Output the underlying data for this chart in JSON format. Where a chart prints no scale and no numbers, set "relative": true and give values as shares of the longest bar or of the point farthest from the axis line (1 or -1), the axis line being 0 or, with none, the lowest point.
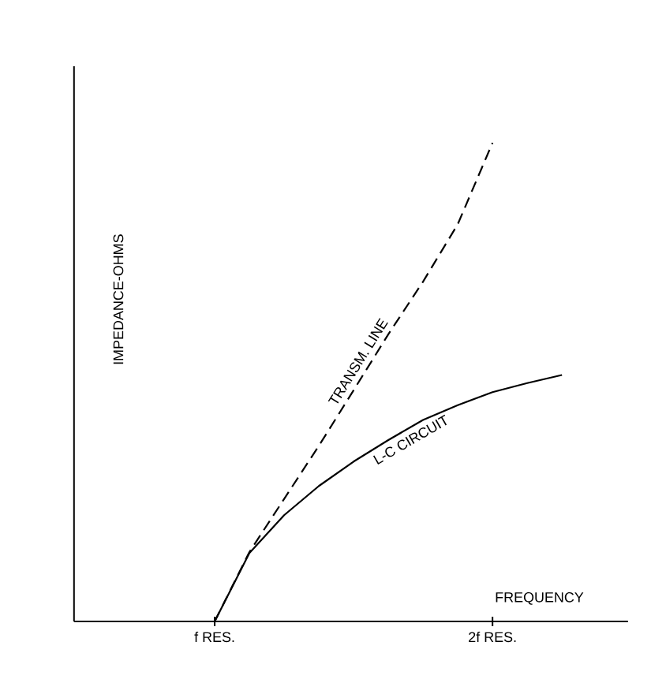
{
  "chart_data": {
    "type": "line",
    "relative": true,
    "xlabel": "FREQUENCY",
    "ylabel": "IMPEDANCE-OHMS",
    "categories": [
      null,
      null,
      null,
      null,
      "f RES.",
      null,
      null,
      null,
      null,
      null,
      null,
      null,
      "2f RES.",
      null,
      null,
      null
    ],
    "series": [
      {
        "name": "TRANSM. LINE",
        "color": "#000000",
        "line_style": "dashed",
        "values": [
          null,
          null,
          null,
          null,
          0,
          0.145,
          0.256,
          0.367,
          0.483,
          0.6,
          0.71,
          0.83,
          1.0,
          null,
          null,
          null
        ]
      },
      {
        "name": "L-C CIRCUIT",
        "color": "#000000",
        "line_style": "solid",
        "values": [
          null,
          null,
          null,
          null,
          0,
          0.143,
          0.222,
          0.283,
          0.334,
          0.379,
          0.421,
          0.452,
          0.479,
          0.498,
          0.515,
          null
        ]
      }
    ]
  }
}
